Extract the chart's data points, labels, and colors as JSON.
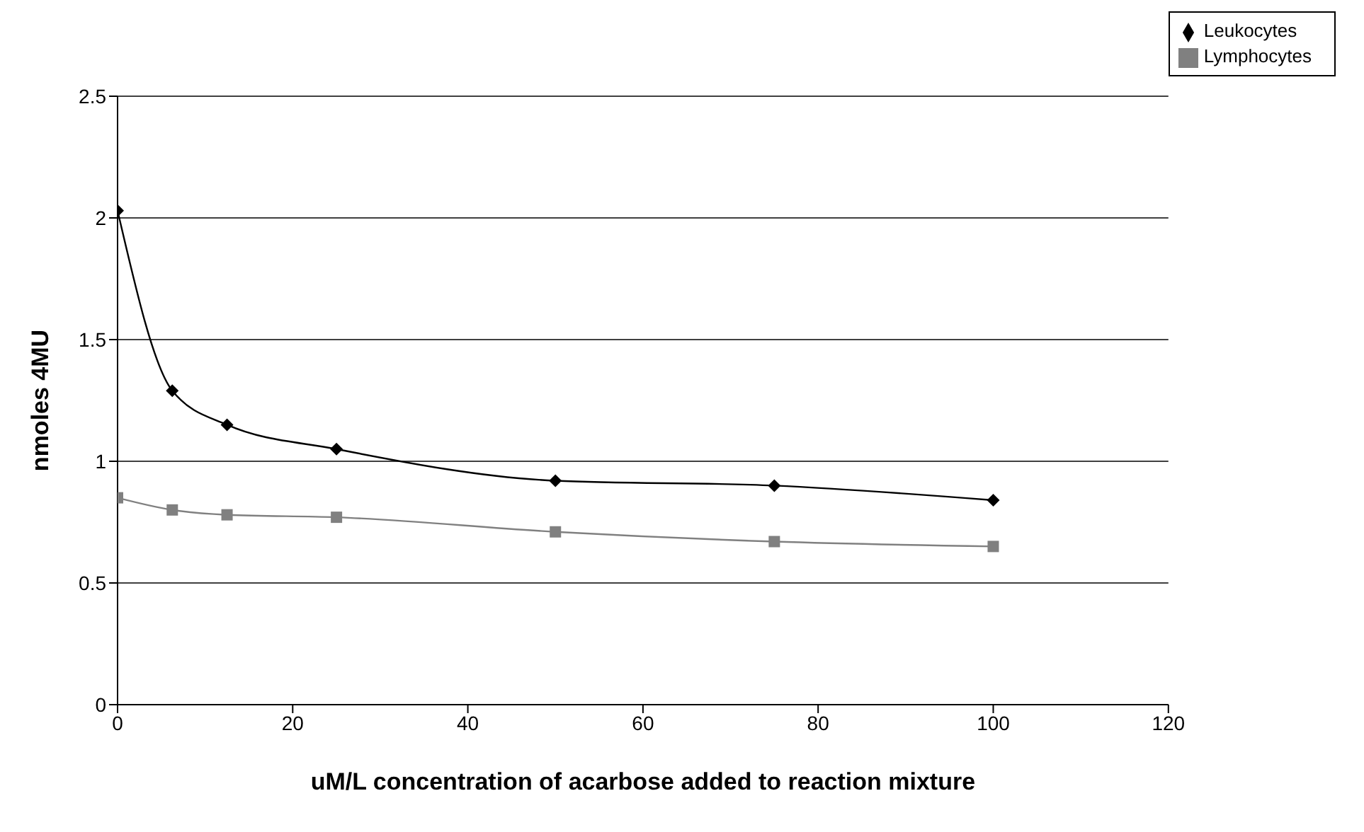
{
  "chart_data": {
    "type": "line",
    "xlabel": "uM/L concentration of acarbose added to reaction mixture",
    "ylabel": "nmoles 4MU",
    "x": [
      0,
      6.25,
      12.5,
      25,
      50,
      75,
      100
    ],
    "series": [
      {
        "name": "Leukocytes",
        "color": "#000000",
        "marker": "diamond",
        "values": [
          2.03,
          1.29,
          1.15,
          1.05,
          0.92,
          0.9,
          0.84
        ]
      },
      {
        "name": "Lymphocytes",
        "color": "#808080",
        "marker": "square",
        "values": [
          0.85,
          0.8,
          0.78,
          0.77,
          0.71,
          0.67,
          0.65
        ]
      }
    ],
    "xlim": [
      0,
      120
    ],
    "xticks": [
      0,
      20,
      40,
      60,
      80,
      100,
      120
    ],
    "ylim": [
      0,
      2.5
    ],
    "yticks": [
      0,
      0.5,
      1,
      1.5,
      2,
      2.5
    ],
    "grid": "y",
    "legend": "top right",
    "line_style": "solid"
  }
}
